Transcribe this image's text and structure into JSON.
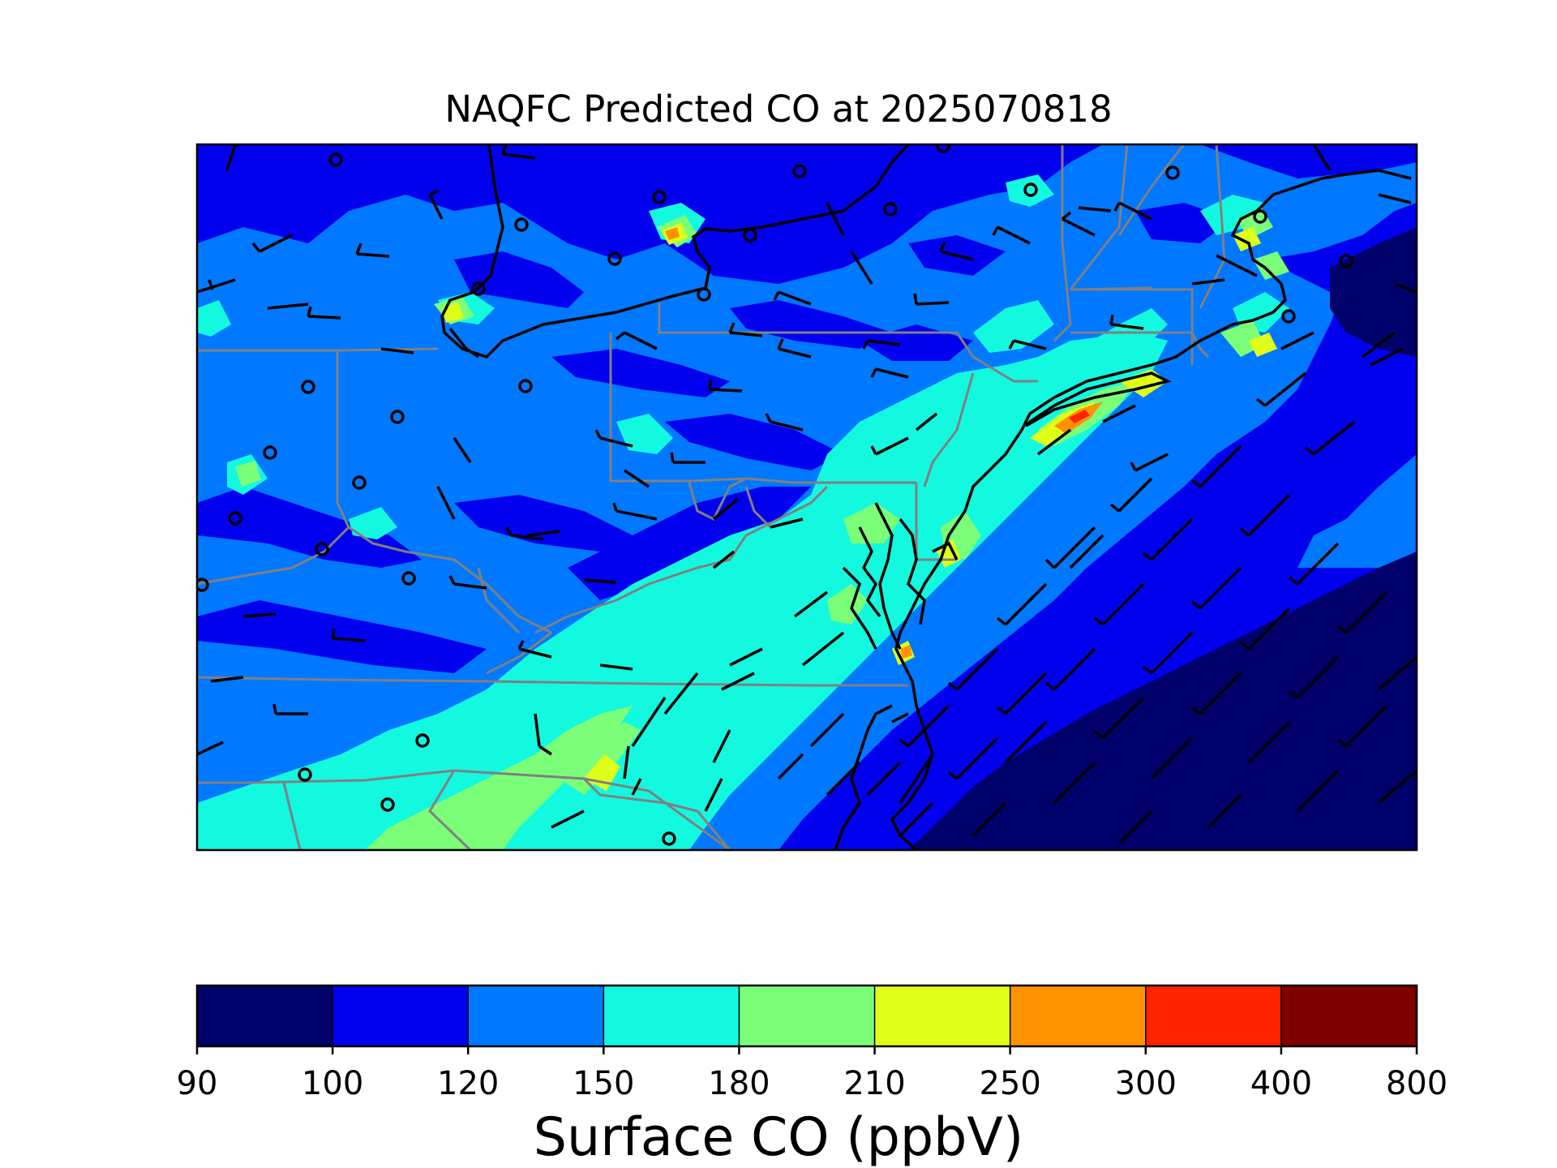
{
  "title": "NAQFC Predicted CO at 2025070818",
  "colorbar": {
    "label": "Surface CO (ppbV)",
    "ticks": [
      "90",
      "100",
      "120",
      "150",
      "180",
      "210",
      "250",
      "300",
      "400",
      "800"
    ],
    "colors": [
      "#00006a",
      "#0000ef",
      "#0078ff",
      "#13f9e0",
      "#7bff79",
      "#dfff18",
      "#ff9300",
      "#ff2300",
      "#800000"
    ]
  },
  "map_colors": {
    "level_1": "#00006a",
    "level_2": "#0000ef",
    "level_3": "#0078ff",
    "level_4": "#13f9e0",
    "level_5": "#7bff79",
    "level_6": "#dfff18",
    "level_7": "#ff9300",
    "level_8": "#ff2300",
    "state_boundary": "#808080",
    "coastline": "#000000",
    "wind_barb": "#000000"
  },
  "overlays": {
    "wind_barbs": "wind barbs",
    "calm_circles": "calm wind station circles",
    "state_boundaries": "state boundaries",
    "coastlines": "coastlines"
  }
}
